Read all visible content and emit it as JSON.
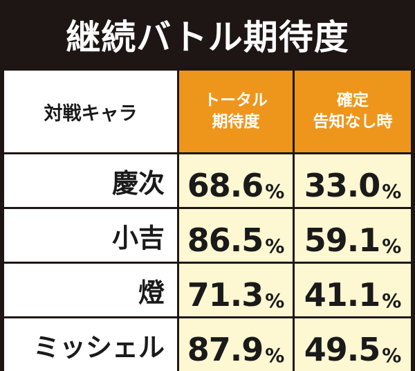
{
  "title": "継続バトル期待度",
  "table": {
    "header": {
      "character_label": "対戦キャラ",
      "col1": [
        "トータル",
        "期待度"
      ],
      "col2": [
        "確定",
        "告知なし時"
      ]
    },
    "unit": "%",
    "rows": [
      {
        "name": "慶次",
        "total": "68.6",
        "no_notice": "33.0"
      },
      {
        "name": "小吉",
        "total": "86.5",
        "no_notice": "59.1"
      },
      {
        "name": "燈",
        "total": "71.3",
        "no_notice": "41.1"
      },
      {
        "name": "ミッシェル",
        "total": "87.9",
        "no_notice": "49.5"
      }
    ]
  },
  "colors": {
    "background": "#1e1614",
    "header_orange": "#ee961c",
    "value_cream": "#fdf7d2",
    "label_white": "#ffffff"
  }
}
